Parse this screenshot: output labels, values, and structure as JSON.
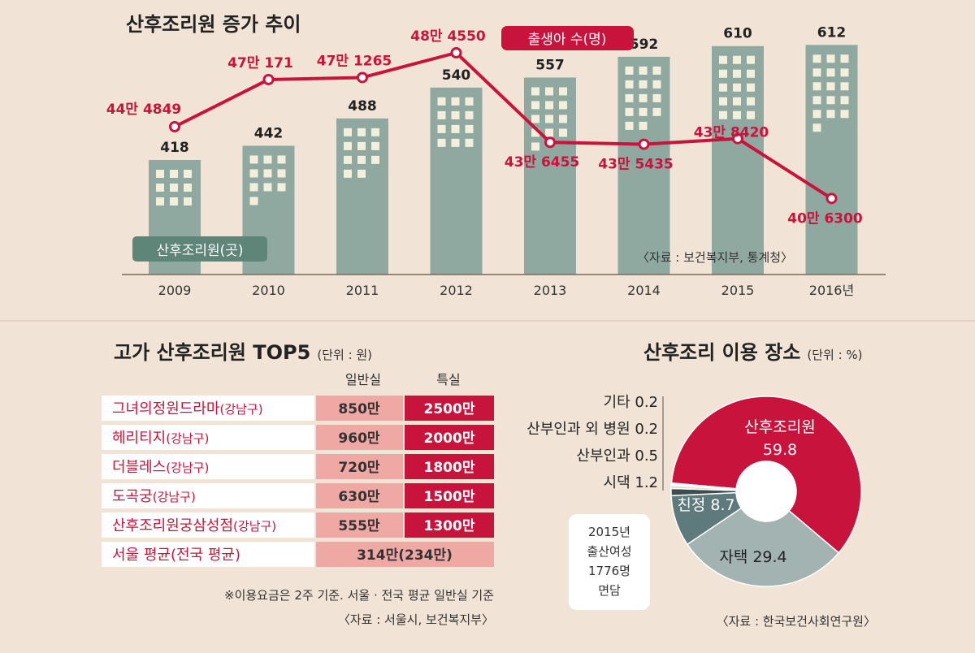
{
  "colors": {
    "accent": "#c8143c",
    "bar": "#8fa9a0",
    "window": "#f4eedd",
    "legend_green": "#5e8578",
    "row_pink": "#f0a8a4",
    "background": "#f1e4d6"
  },
  "chart_data": [
    {
      "type": "bar+line",
      "title": "산후조리원 증가 추이",
      "categories": [
        "2009",
        "2010",
        "2011",
        "2012",
        "2013",
        "2014",
        "2015",
        "2016년"
      ],
      "series": [
        {
          "name": "산후조리원(곳)",
          "type": "bar",
          "values": [
            418,
            442,
            488,
            540,
            557,
            592,
            610,
            612
          ],
          "labels": [
            "418",
            "442",
            "488",
            "540",
            "557",
            "592",
            "610",
            "612"
          ]
        },
        {
          "name": "출생아 수(명)",
          "type": "line",
          "values": [
            444849,
            470171,
            471265,
            484550,
            436455,
            435435,
            438420,
            406300
          ],
          "labels": [
            "44만 4849",
            "47만 171",
            "47만 1265",
            "48만 4550",
            "43만 6455",
            "43만 5435",
            "43만 8420",
            "40만 6300"
          ]
        }
      ],
      "legend": [
        "산후조리원(곳)",
        "출생아 수(명)"
      ],
      "source": "〈자료 : 보건복지부, 통계청〉",
      "xlabel": "",
      "ylabel": ""
    },
    {
      "type": "pie",
      "title": "산후조리 이용 장소",
      "unit": "(단위 : %)",
      "slices": [
        {
          "label": "산후조리원",
          "value": 59.8,
          "color": "#c8143c"
        },
        {
          "label": "자택",
          "value": 29.4,
          "color": "#a2b3b1"
        },
        {
          "label": "친정",
          "value": 8.7,
          "color": "#5f7a7c"
        },
        {
          "label": "시댁",
          "value": 1.2,
          "color": "#3d4e50"
        },
        {
          "label": "산부인과",
          "value": 0.5,
          "color": "#e8d8cc"
        },
        {
          "label": "산부인과 외 병원",
          "value": 0.2,
          "color": "#9a8a80"
        },
        {
          "label": "기타",
          "value": 0.2,
          "color": "#c8143c"
        }
      ],
      "inner_labels": [
        {
          "name": "산후조리원",
          "value": "59.8"
        },
        {
          "text": "자택 29.4"
        },
        {
          "text": "친정 8.7"
        }
      ],
      "outer_labels": [
        "기타 0.2",
        "산부인과 외 병원 0.2",
        "산부인과 0.5",
        "시댁 1.2"
      ],
      "survey": [
        "2015년",
        "출산여성",
        "1776명",
        "면담"
      ],
      "source": "〈자료 : 한국보건사회연구원〉"
    }
  ],
  "table": {
    "title": "고가 산후조리원 TOP5",
    "unit": "(단위 : 원)",
    "headers": [
      "일반실",
      "특실"
    ],
    "rows": [
      {
        "name": "그녀의정원드라마",
        "district": "(강남구)",
        "general": "850만",
        "special": "2500만"
      },
      {
        "name": "헤리티지",
        "district": "(강남구)",
        "general": "960만",
        "special": "2000만"
      },
      {
        "name": "더블레스",
        "district": "(강남구)",
        "general": "720만",
        "special": "1800만"
      },
      {
        "name": "도곡궁",
        "district": "(강남구)",
        "general": "630만",
        "special": "1500만"
      },
      {
        "name": "산후조리원궁삼성점",
        "district": "(강남구)",
        "general": "555만",
        "special": "1300만"
      }
    ],
    "average": {
      "name": "서울 평균(전국 평균)",
      "value": "314만(234만)"
    },
    "note": "※이용요금은 2주 기준. 서울 · 전국 평균 일반실 기준",
    "source": "〈자료 : 서울시, 보건복지부〉"
  }
}
